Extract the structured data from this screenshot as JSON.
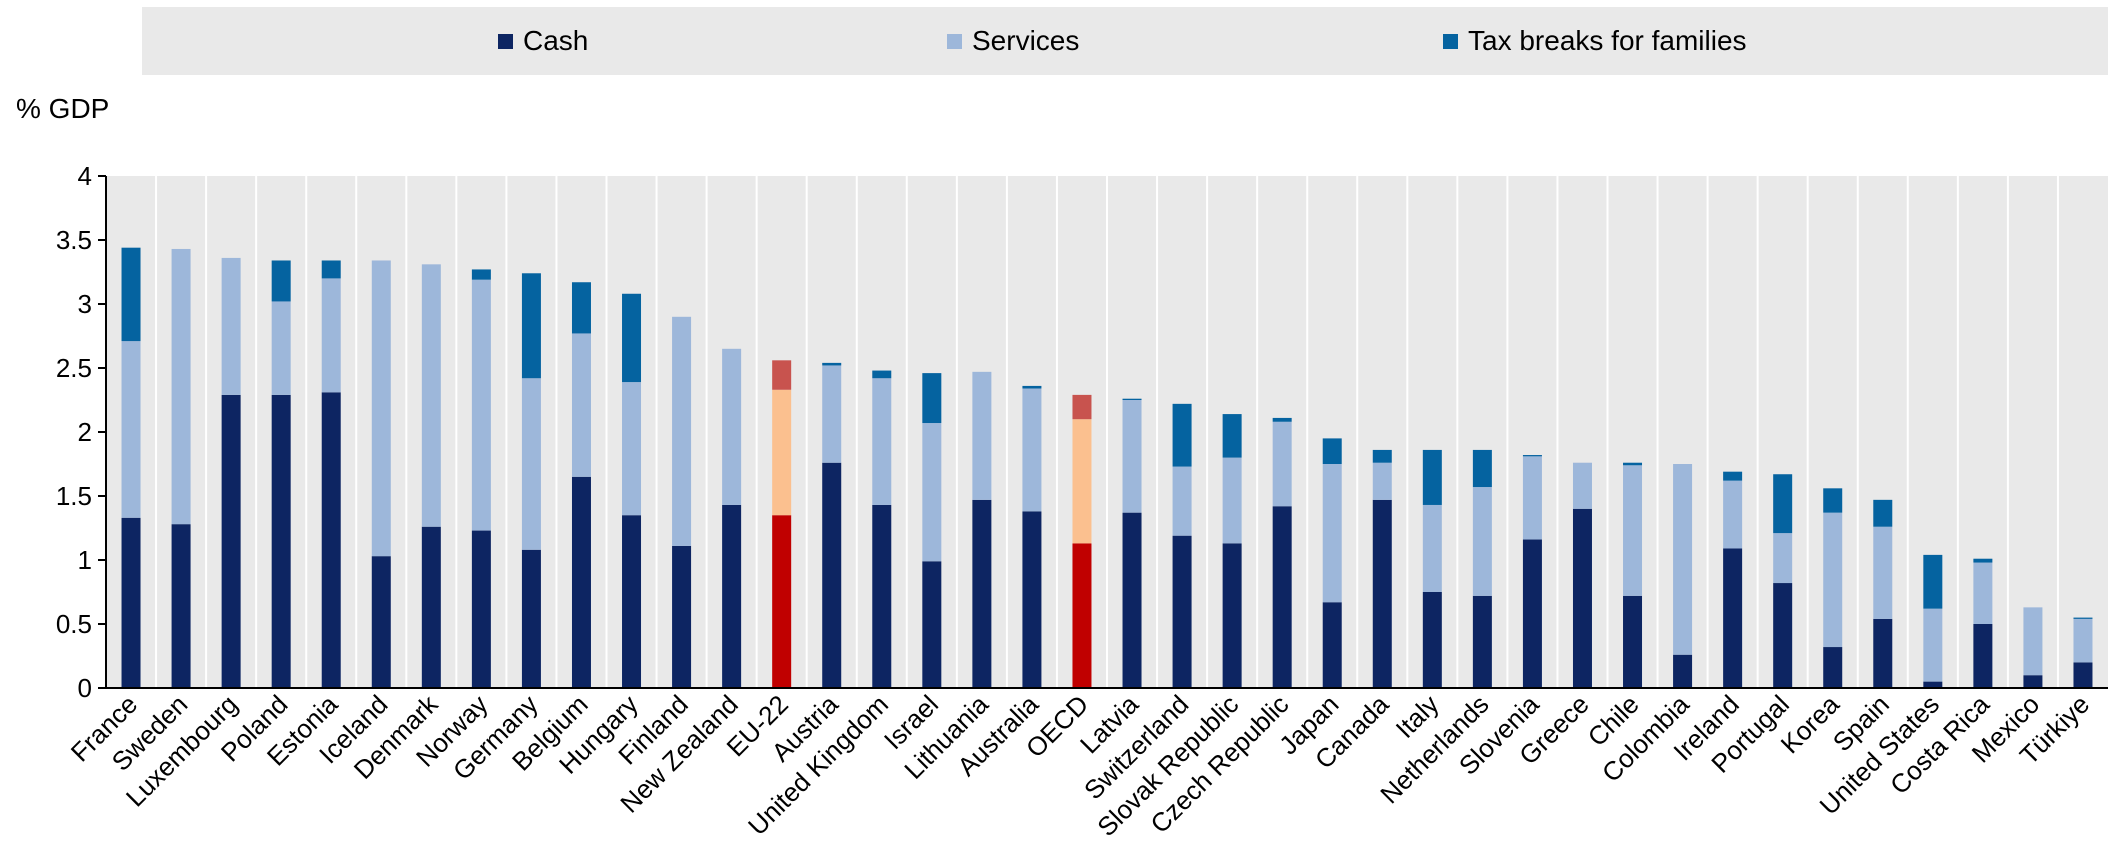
{
  "legend": {
    "cash": "Cash",
    "services": "Services",
    "tax": "Tax breaks for families"
  },
  "unit_label": "% GDP",
  "colors": {
    "cash": "#0d2562",
    "services": "#9db7da",
    "tax": "#0563a0",
    "highlight_cash": "#c00000",
    "highlight_services": "#fbc08f",
    "highlight_tax": "#c8534e",
    "plot_bg": "#e9e9e9"
  },
  "chart_data": {
    "type": "bar",
    "stacked": true,
    "ylabel": "% GDP",
    "ylim": [
      0,
      4
    ],
    "yticks": [
      "0",
      "0.5",
      "1",
      "1.5",
      "2",
      "2.5",
      "3",
      "3.5",
      "4"
    ],
    "grid": false,
    "legend_position": "top",
    "categories": [
      "France",
      "Sweden",
      "Luxembourg",
      "Poland",
      "Estonia",
      "Iceland",
      "Denmark",
      "Norway",
      "Germany",
      "Belgium",
      "Hungary",
      "Finland",
      "New Zealand",
      "EU-22",
      "Austria",
      "United Kingdom",
      "Israel",
      "Lithuania",
      "Australia",
      "OECD",
      "Latvia",
      "Switzerland",
      "Slovak Republic",
      "Czech Republic",
      "Japan",
      "Canada",
      "Italy",
      "Netherlands",
      "Slovenia",
      "Greece",
      "Chile",
      "Colombia",
      "Ireland",
      "Portugal",
      "Korea",
      "Spain",
      "United States",
      "Costa Rica",
      "Mexico",
      "Türkiye"
    ],
    "highlight": [
      "EU-22",
      "OECD"
    ],
    "series": [
      {
        "name": "Cash",
        "values": [
          1.33,
          1.28,
          2.29,
          2.29,
          2.31,
          1.03,
          1.26,
          1.23,
          1.08,
          1.65,
          1.35,
          1.11,
          1.43,
          1.35,
          1.76,
          1.43,
          0.99,
          1.47,
          1.38,
          1.13,
          1.37,
          1.19,
          1.13,
          1.42,
          0.67,
          1.47,
          0.75,
          0.72,
          1.16,
          1.4,
          0.72,
          0.26,
          1.09,
          0.82,
          0.32,
          0.54,
          0.05,
          0.5,
          0.1,
          0.2
        ]
      },
      {
        "name": "Services",
        "values": [
          1.38,
          2.15,
          1.07,
          0.73,
          0.89,
          2.31,
          2.05,
          1.96,
          1.34,
          1.12,
          1.04,
          1.79,
          1.22,
          0.98,
          0.76,
          0.99,
          1.08,
          1.0,
          0.96,
          0.97,
          0.88,
          0.54,
          0.67,
          0.66,
          1.08,
          0.29,
          0.68,
          0.85,
          0.65,
          0.36,
          1.02,
          1.49,
          0.53,
          0.39,
          1.05,
          0.72,
          0.57,
          0.48,
          0.53,
          0.34
        ]
      },
      {
        "name": "Tax breaks for families",
        "values": [
          0.73,
          0.0,
          0.0,
          0.32,
          0.14,
          0.0,
          0.0,
          0.08,
          0.82,
          0.4,
          0.69,
          0.0,
          0.0,
          0.23,
          0.02,
          0.06,
          0.39,
          0.0,
          0.02,
          0.19,
          0.01,
          0.49,
          0.34,
          0.03,
          0.2,
          0.1,
          0.43,
          0.29,
          0.01,
          0.0,
          0.02,
          0.0,
          0.07,
          0.46,
          0.19,
          0.21,
          0.42,
          0.03,
          0.0,
          0.01
        ]
      }
    ]
  }
}
